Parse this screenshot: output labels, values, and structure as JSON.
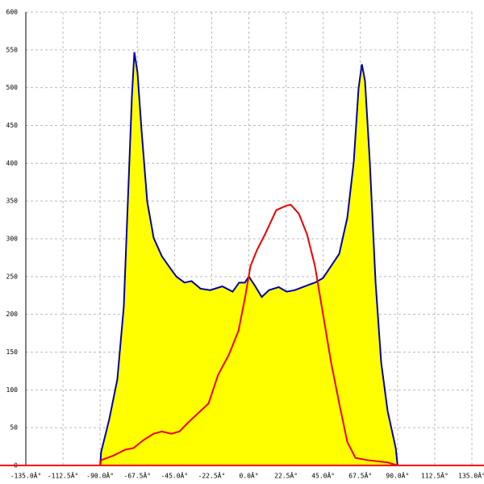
{
  "chart_data": {
    "type": "line",
    "xlim": [
      -135,
      135
    ],
    "ylim": [
      0,
      600
    ],
    "xticks": [
      {
        "value": -135,
        "label": "-135.0Â°"
      },
      {
        "value": -112.5,
        "label": "-112.5Â°"
      },
      {
        "value": -90,
        "label": "-90.0Â°"
      },
      {
        "value": -67.5,
        "label": "-67.5Â°"
      },
      {
        "value": -45,
        "label": "-45.0Â°"
      },
      {
        "value": -22.5,
        "label": "-22.5Â°"
      },
      {
        "value": 0,
        "label": "0.0Â°"
      },
      {
        "value": 22.5,
        "label": "22.5Â°"
      },
      {
        "value": 45,
        "label": "45.0Â°"
      },
      {
        "value": 67.5,
        "label": "67.5Â°"
      },
      {
        "value": 90,
        "label": "90.0Â°"
      },
      {
        "value": 112.5,
        "label": "112.5Â°"
      },
      {
        "value": 135,
        "label": "135.0Â°"
      }
    ],
    "yticks": [
      0,
      50,
      100,
      150,
      200,
      250,
      300,
      350,
      400,
      450,
      500,
      550,
      600
    ],
    "grid": true,
    "axis_color": "#ff0000",
    "series": [
      {
        "color": "#0000aa",
        "fill": "#ffff00",
        "x": [
          -90,
          -89.4,
          -84.5,
          -79.6,
          -75.7,
          -72.3,
          -70.8,
          -69.3,
          -67.4,
          -65,
          -61.5,
          -57.6,
          -52.7,
          -47.9,
          -43.9,
          -39,
          -34.7,
          -29.3,
          -23.4,
          -16.1,
          -9.8,
          -5.9,
          -2.4,
          0,
          3.9,
          7.8,
          12.2,
          18.1,
          22.9,
          27.8,
          33.7,
          40,
          44.9,
          49.8,
          54.7,
          59.6,
          63.5,
          66.4,
          68.4,
          70.3,
          73.2,
          76.7,
          80.1,
          84,
          88.9,
          90
        ],
        "values": [
          0,
          18,
          61,
          114,
          210,
          402,
          488,
          547,
          520,
          445,
          349,
          301,
          277,
          262,
          250,
          242,
          244,
          234,
          232,
          237,
          230,
          242,
          242,
          250,
          237,
          223,
          232,
          236,
          230,
          232,
          237,
          242,
          248,
          264,
          280,
          328,
          402,
          499,
          531,
          509,
          402,
          242,
          136,
          72,
          23,
          0
        ]
      },
      {
        "color": "#ee0000",
        "x": [
          -90,
          -89.4,
          -82,
          -74.7,
          -69.8,
          -63.5,
          -57.6,
          -52.7,
          -46.9,
          -42,
          -37.1,
          -30.8,
          -24.4,
          -18.6,
          -12.2,
          -6.3,
          -2.4,
          1,
          4.9,
          9.8,
          16.6,
          22.9,
          25.4,
          30.3,
          35.2,
          40,
          44.9,
          49.8,
          54.7,
          59.6,
          64.5,
          71.8,
          84,
          90
        ],
        "values": [
          0,
          7,
          13,
          21,
          23,
          34,
          42,
          45,
          42,
          45,
          56,
          69,
          82,
          120,
          146,
          178,
          221,
          264,
          285,
          306,
          338,
          344,
          345,
          333,
          306,
          264,
          200,
          136,
          82,
          31,
          10,
          7,
          4,
          0
        ]
      }
    ]
  }
}
